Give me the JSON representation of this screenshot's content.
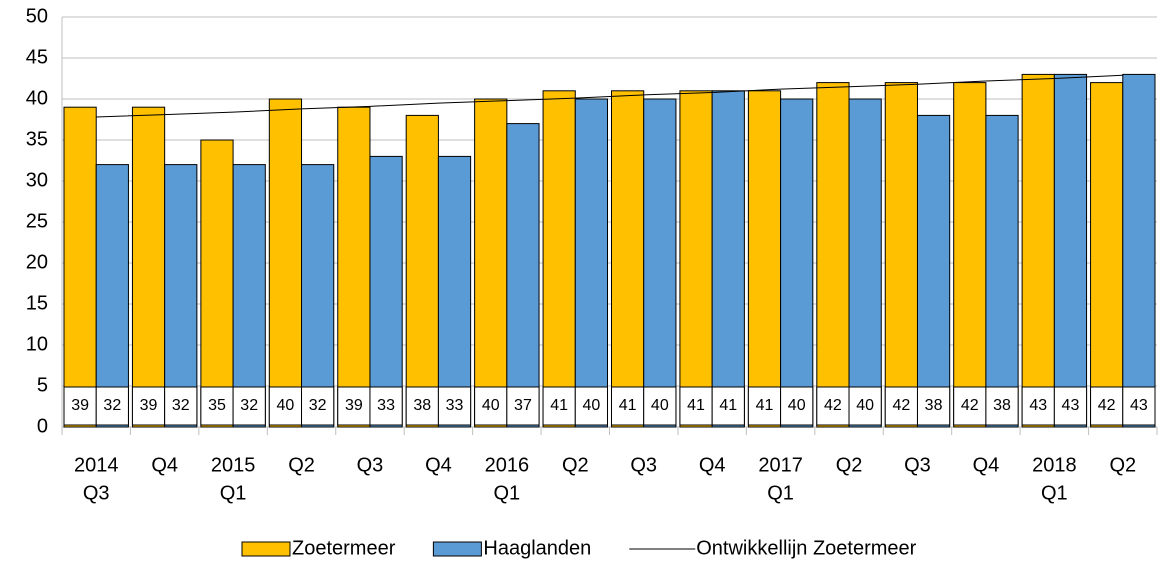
{
  "chart_data": {
    "type": "bar",
    "categories": [
      [
        "2014",
        "Q3"
      ],
      [
        "Q4"
      ],
      [
        "2015",
        "Q1"
      ],
      [
        "Q2"
      ],
      [
        "Q3"
      ],
      [
        "Q4"
      ],
      [
        "2016",
        "Q1"
      ],
      [
        "Q2"
      ],
      [
        "Q3"
      ],
      [
        "Q4"
      ],
      [
        "2017",
        "Q1"
      ],
      [
        "Q2"
      ],
      [
        "Q3"
      ],
      [
        "Q4"
      ],
      [
        "2018",
        "Q1"
      ],
      [
        "Q2"
      ]
    ],
    "series": [
      {
        "name": "Zoetermeer",
        "color": "#ffc000",
        "values": [
          39,
          39,
          35,
          40,
          39,
          38,
          40,
          41,
          41,
          41,
          41,
          42,
          42,
          42,
          43,
          42
        ]
      },
      {
        "name": "Haaglanden",
        "color": "#5b9bd5",
        "values": [
          32,
          32,
          32,
          32,
          33,
          33,
          37,
          40,
          40,
          41,
          40,
          40,
          38,
          38,
          43,
          43
        ]
      },
      {
        "name": "Ontwikkellijn Zoetermeer",
        "color": "#000000",
        "kind": "line",
        "values": [
          37.8,
          38.1,
          38.4,
          38.8,
          39.1,
          39.5,
          39.8,
          40.1,
          40.5,
          40.8,
          41.2,
          41.5,
          41.8,
          42.2,
          42.5,
          42.9
        ]
      }
    ],
    "ylim": [
      0,
      50
    ],
    "yticks": [
      0,
      5,
      10,
      15,
      20,
      25,
      30,
      35,
      40,
      45,
      50
    ],
    "grid": true,
    "legend": "bottom"
  }
}
